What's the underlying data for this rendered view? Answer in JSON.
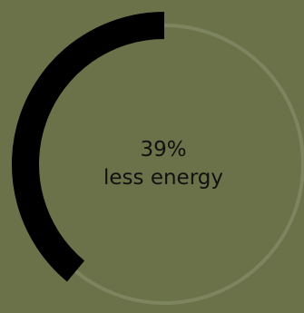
{
  "stat": {
    "value_text": "39%",
    "caption": "less energy",
    "percent": 39
  },
  "colors": {
    "background": "#6b7148",
    "track": "#7d8460",
    "progress": "#000000",
    "text": "#111111"
  }
}
